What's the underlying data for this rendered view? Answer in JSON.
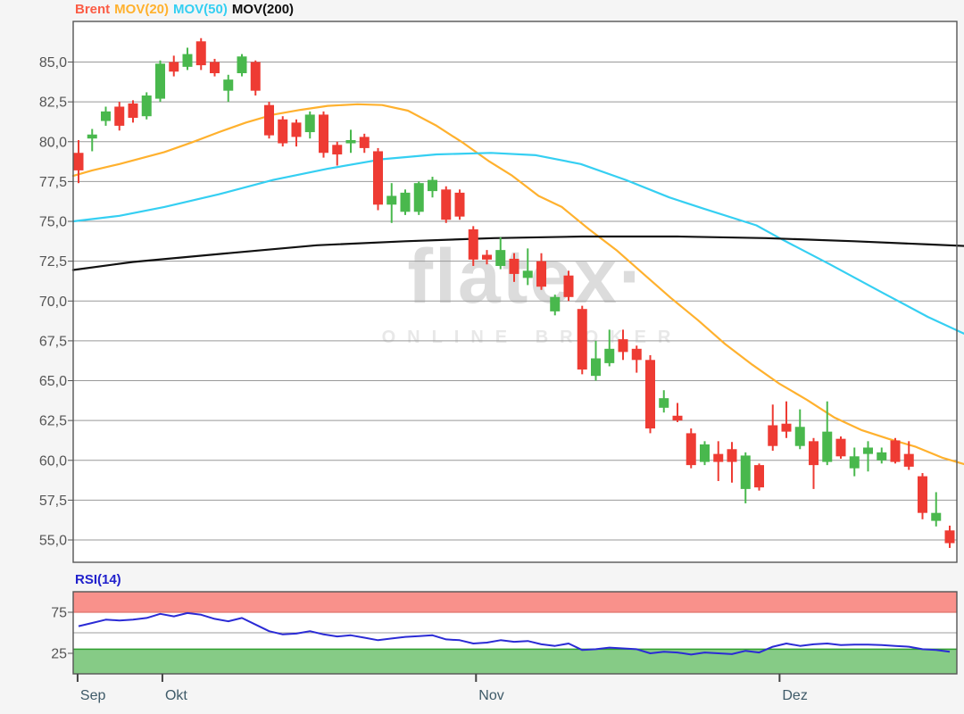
{
  "legend": {
    "items": [
      {
        "label": "Brent",
        "color": "#fb5c45"
      },
      {
        "label": "MOV(20)",
        "color": "#ffb12e"
      },
      {
        "label": "MOV(50)",
        "color": "#35cff2"
      },
      {
        "label": "MOV(200)",
        "color": "#111111"
      }
    ]
  },
  "watermark": {
    "title": "flatex·",
    "subtitle": "ONLINE BROKER",
    "title_color": "#dcdcdc",
    "subtitle_color": "#e8e8e8"
  },
  "y_axis": {
    "labels": [
      "85,0",
      "82,5",
      "80,0",
      "77,5",
      "75,0",
      "72,5",
      "70,0",
      "67,5",
      "65,0",
      "62,5",
      "60,0",
      "57,5",
      "55,0"
    ],
    "values": [
      85,
      82.5,
      80,
      77.5,
      75,
      72.5,
      70,
      67.5,
      65,
      62.5,
      60,
      57.5,
      55
    ],
    "text_color": "#555555"
  },
  "x_axis": {
    "months": [
      {
        "label": "Sep",
        "index": -0.07
      },
      {
        "label": "Okt",
        "index": 6.16
      },
      {
        "label": "Nov",
        "index": 29.2
      },
      {
        "label": "Dez",
        "index": 51.5
      }
    ],
    "text_color": "#3e5a68"
  },
  "rsi_panel": {
    "label": "RSI(14)",
    "label_color": "#2121cc",
    "line_color": "#2b2bd5",
    "tick_labels": [
      "75",
      "25"
    ],
    "tick_values": [
      75,
      25
    ],
    "overbought_band": [
      75,
      100
    ],
    "oversold_band": [
      0,
      30
    ],
    "band_red": "#f9918b",
    "band_red_edge": "#e0746c",
    "band_green": "#86cb86",
    "band_green_edge": "#2f9e2f",
    "mid_line_value": 50,
    "range": [
      0,
      100
    ]
  },
  "chart_data": {
    "type": "candlestick",
    "title": "Brent",
    "ylim": [
      53.6,
      87.55
    ],
    "grid": true,
    "up_color": "#49b84d",
    "down_color": "#ee3b33",
    "grid_color": "#999999",
    "border_color": "#555555",
    "candles": [
      [
        79.3,
        80.1,
        77.4,
        78.2
      ],
      [
        80.2,
        80.8,
        79.4,
        80.45
      ],
      [
        81.3,
        82.2,
        81.0,
        81.9
      ],
      [
        82.2,
        82.5,
        80.7,
        81.0
      ],
      [
        82.4,
        82.6,
        81.2,
        81.5
      ],
      [
        81.6,
        83.1,
        81.4,
        82.9
      ],
      [
        82.7,
        85.1,
        82.5,
        84.9
      ],
      [
        85.0,
        85.4,
        84.1,
        84.4
      ],
      [
        84.7,
        85.9,
        84.5,
        85.5
      ],
      [
        86.3,
        86.5,
        84.5,
        84.8
      ],
      [
        85.0,
        85.2,
        84.1,
        84.3
      ],
      [
        83.2,
        84.2,
        82.5,
        83.9
      ],
      [
        84.3,
        85.5,
        84.1,
        85.35
      ],
      [
        85.0,
        85.1,
        82.9,
        83.2
      ],
      [
        82.3,
        82.5,
        80.2,
        80.4
      ],
      [
        81.4,
        81.6,
        79.7,
        79.9
      ],
      [
        81.2,
        81.4,
        79.7,
        80.3
      ],
      [
        80.6,
        81.9,
        80.2,
        81.7
      ],
      [
        81.7,
        81.9,
        79.0,
        79.3
      ],
      [
        79.8,
        80.0,
        78.5,
        79.2
      ],
      [
        79.9,
        80.75,
        79.3,
        80.1
      ],
      [
        80.3,
        80.5,
        79.3,
        79.6
      ],
      [
        79.4,
        79.6,
        75.7,
        76.05
      ],
      [
        76.05,
        77.4,
        74.9,
        76.6
      ],
      [
        75.6,
        77.0,
        75.4,
        76.8
      ],
      [
        75.6,
        77.5,
        75.4,
        77.4
      ],
      [
        76.9,
        77.8,
        76.5,
        77.6
      ],
      [
        77.0,
        77.2,
        74.9,
        75.1
      ],
      [
        76.8,
        77.0,
        75.1,
        75.3
      ],
      [
        74.5,
        74.7,
        72.2,
        72.6
      ],
      [
        72.9,
        73.2,
        72.3,
        72.6
      ],
      [
        72.2,
        74.0,
        72.0,
        73.2
      ],
      [
        72.65,
        73.0,
        71.2,
        71.7
      ],
      [
        71.45,
        73.3,
        71.0,
        71.9
      ],
      [
        72.5,
        73.0,
        70.7,
        70.9
      ],
      [
        69.35,
        70.4,
        69.1,
        70.25
      ],
      [
        71.6,
        71.9,
        70.0,
        70.25
      ],
      [
        69.5,
        69.7,
        65.4,
        65.7
      ],
      [
        65.3,
        67.5,
        65.0,
        66.4
      ],
      [
        66.1,
        68.2,
        65.9,
        67.0
      ],
      [
        67.6,
        68.2,
        66.3,
        66.8
      ],
      [
        67.0,
        67.2,
        65.5,
        66.3
      ],
      [
        66.3,
        66.6,
        61.7,
        62.0
      ],
      [
        63.3,
        64.4,
        63.0,
        63.9
      ],
      [
        62.8,
        63.6,
        62.4,
        62.5
      ],
      [
        61.7,
        62.0,
        59.5,
        59.7
      ],
      [
        59.9,
        61.2,
        59.7,
        61.0
      ],
      [
        60.4,
        61.2,
        58.7,
        59.9
      ],
      [
        60.7,
        61.15,
        58.6,
        59.9
      ],
      [
        58.2,
        60.5,
        57.3,
        60.3
      ],
      [
        59.7,
        59.8,
        58.1,
        58.3
      ],
      [
        62.2,
        63.5,
        60.6,
        60.9
      ],
      [
        62.3,
        63.7,
        61.4,
        61.8
      ],
      [
        60.9,
        63.2,
        60.7,
        62.1
      ],
      [
        61.2,
        61.4,
        58.2,
        59.7
      ],
      [
        59.9,
        63.7,
        59.7,
        61.8
      ],
      [
        61.35,
        61.5,
        60.1,
        60.25
      ],
      [
        59.5,
        60.8,
        59.0,
        60.25
      ],
      [
        60.4,
        61.2,
        59.3,
        60.8
      ],
      [
        60.0,
        60.8,
        59.8,
        60.5
      ],
      [
        61.25,
        61.4,
        59.8,
        59.9
      ],
      [
        60.4,
        61.2,
        59.4,
        59.6
      ],
      [
        59.0,
        59.2,
        56.3,
        56.7
      ],
      [
        56.2,
        58.0,
        55.85,
        56.7
      ],
      [
        55.6,
        55.9,
        54.5,
        54.8
      ]
    ],
    "series": [
      {
        "name": "MOV(20)",
        "color": "#ffb12e",
        "points": [
          [
            -0.4,
            77.85
          ],
          [
            1,
            78.2
          ],
          [
            3,
            78.6
          ],
          [
            5,
            79.05
          ],
          [
            6.3,
            79.35
          ],
          [
            8.3,
            79.95
          ],
          [
            10.3,
            80.6
          ],
          [
            12.3,
            81.2
          ],
          [
            14.3,
            81.7
          ],
          [
            16.3,
            82.0
          ],
          [
            18.3,
            82.25
          ],
          [
            20.5,
            82.35
          ],
          [
            22.3,
            82.3
          ],
          [
            24.2,
            81.95
          ],
          [
            26.3,
            81.0
          ],
          [
            28.3,
            79.9
          ],
          [
            30.2,
            78.75
          ],
          [
            31.8,
            77.9
          ],
          [
            33.8,
            76.6
          ],
          [
            35.5,
            75.9
          ],
          [
            37.5,
            74.5
          ],
          [
            39.5,
            73.2
          ],
          [
            41.5,
            71.7
          ],
          [
            43.5,
            70.2
          ],
          [
            45.5,
            68.8
          ],
          [
            47.5,
            67.3
          ],
          [
            49.5,
            66.0
          ],
          [
            51.5,
            64.8
          ],
          [
            53.5,
            63.8
          ],
          [
            55.5,
            62.7
          ],
          [
            57.5,
            61.9
          ],
          [
            59.5,
            61.35
          ],
          [
            61.5,
            60.85
          ],
          [
            63.5,
            60.15
          ],
          [
            65.3,
            59.7
          ]
        ]
      },
      {
        "name": "MOV(50)",
        "color": "#35cff2",
        "points": [
          [
            -0.4,
            75.0
          ],
          [
            3,
            75.35
          ],
          [
            6.3,
            75.9
          ],
          [
            10.3,
            76.7
          ],
          [
            14.3,
            77.6
          ],
          [
            18.3,
            78.3
          ],
          [
            22.3,
            78.9
          ],
          [
            26.3,
            79.2
          ],
          [
            30.3,
            79.3
          ],
          [
            33.6,
            79.15
          ],
          [
            36.9,
            78.6
          ],
          [
            40.2,
            77.6
          ],
          [
            43.4,
            76.5
          ],
          [
            45.9,
            75.8
          ],
          [
            49.8,
            74.75
          ],
          [
            51.5,
            73.95
          ],
          [
            55.2,
            72.3
          ],
          [
            59.1,
            70.5
          ],
          [
            62.4,
            69.0
          ],
          [
            65.3,
            67.85
          ]
        ]
      },
      {
        "name": "MOV(200)",
        "color": "#111111",
        "points": [
          [
            -0.4,
            71.95
          ],
          [
            4,
            72.45
          ],
          [
            11,
            73.0
          ],
          [
            17.5,
            73.5
          ],
          [
            24,
            73.75
          ],
          [
            30.5,
            73.95
          ],
          [
            37,
            74.05
          ],
          [
            44,
            74.05
          ],
          [
            50.5,
            73.95
          ],
          [
            57,
            73.75
          ],
          [
            62.5,
            73.55
          ],
          [
            65.3,
            73.45
          ]
        ]
      }
    ],
    "rsi_values": [
      58,
      62,
      66,
      65,
      66,
      68,
      73,
      70,
      74,
      72,
      67,
      64,
      68,
      60,
      52,
      48,
      49,
      52,
      48,
      45.5,
      47,
      44,
      41,
      43,
      45,
      46,
      47,
      42,
      41,
      37,
      38,
      41,
      39,
      40,
      36,
      34,
      37,
      29,
      30,
      32,
      31,
      30,
      25,
      27,
      26,
      23.5,
      26,
      25,
      24,
      28,
      26,
      33,
      37,
      34,
      36,
      37,
      35,
      35.5,
      35.5,
      35,
      34,
      33,
      30,
      29,
      27
    ]
  }
}
